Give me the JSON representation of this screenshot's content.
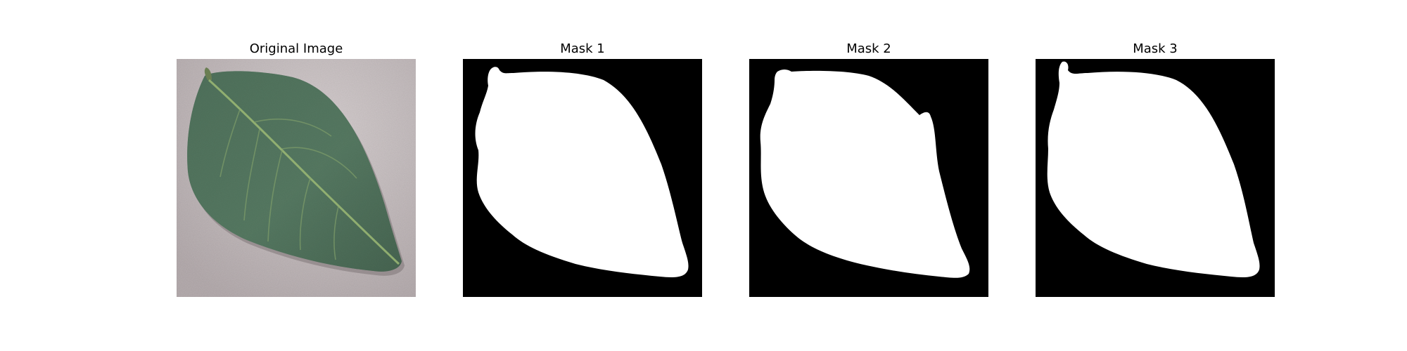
{
  "figure": {
    "panels": [
      {
        "title": "Original Image",
        "kind": "photo"
      },
      {
        "title": "Mask 1",
        "kind": "mask"
      },
      {
        "title": "Mask 2",
        "kind": "mask"
      },
      {
        "title": "Mask 3",
        "kind": "mask"
      }
    ]
  },
  "colors": {
    "mask_background": "#000000",
    "mask_foreground": "#ffffff",
    "photo_background": "#c9c0c2",
    "leaf_dark": "#2f4a3a",
    "leaf_mid": "#4a6b56",
    "leaf_vein": "#8fae6a"
  }
}
